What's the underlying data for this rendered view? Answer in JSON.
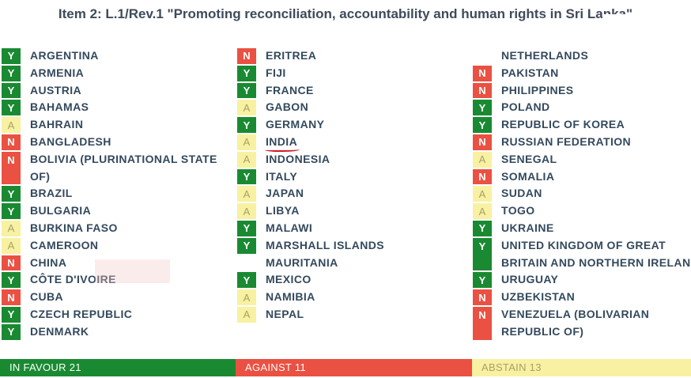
{
  "title": "Item 2: L.1/Rev.1 \"Promoting reconciliation, accountability and human rights in Sri Lanka\"",
  "colors": {
    "favour": "#1a8a32",
    "against": "#ea5142",
    "abstain": "#f8f1a2"
  },
  "columns": [
    [
      {
        "vote": "Y",
        "country": "ARGENTINA"
      },
      {
        "vote": "Y",
        "country": "ARMENIA"
      },
      {
        "vote": "Y",
        "country": "AUSTRIA"
      },
      {
        "vote": "Y",
        "country": "BAHAMAS"
      },
      {
        "vote": "A",
        "country": "BAHRAIN"
      },
      {
        "vote": "N",
        "country": "BANGLADESH"
      },
      {
        "vote": "N",
        "country": "BOLIVIA (PLURINATIONAL STATE OF)",
        "tall": true
      },
      {
        "vote": "Y",
        "country": "BRAZIL"
      },
      {
        "vote": "Y",
        "country": "BULGARIA"
      },
      {
        "vote": "A",
        "country": "BURKINA FASO"
      },
      {
        "vote": "A",
        "country": "CAMEROON"
      },
      {
        "vote": "N",
        "country": "CHINA"
      },
      {
        "vote": "Y",
        "country": "CÔTE D'IVOIRE"
      },
      {
        "vote": "N",
        "country": "CUBA"
      },
      {
        "vote": "Y",
        "country": "CZECH REPUBLIC"
      },
      {
        "vote": "Y",
        "country": "DENMARK"
      }
    ],
    [
      {
        "vote": "N",
        "country": "ERITREA"
      },
      {
        "vote": "Y",
        "country": "FIJI"
      },
      {
        "vote": "Y",
        "country": "FRANCE"
      },
      {
        "vote": "A",
        "country": "GABON"
      },
      {
        "vote": "Y",
        "country": "GERMANY"
      },
      {
        "vote": "A",
        "country": "INDIA",
        "underlined": true
      },
      {
        "vote": "A",
        "country": "INDONESIA"
      },
      {
        "vote": "Y",
        "country": "ITALY"
      },
      {
        "vote": "A",
        "country": "JAPAN"
      },
      {
        "vote": "A",
        "country": "LIBYA"
      },
      {
        "vote": "Y",
        "country": "MALAWI"
      },
      {
        "vote": "Y",
        "country": "MARSHALL ISLANDS"
      },
      {
        "vote": "",
        "country": "MAURITANIA"
      },
      {
        "vote": "Y",
        "country": "MEXICO"
      },
      {
        "vote": "A",
        "country": "NAMIBIA"
      },
      {
        "vote": "A",
        "country": "NEPAL"
      }
    ],
    [
      {
        "vote": "",
        "country": "NETHERLANDS"
      },
      {
        "vote": "N",
        "country": "PAKISTAN"
      },
      {
        "vote": "N",
        "country": "PHILIPPINES"
      },
      {
        "vote": "Y",
        "country": "POLAND"
      },
      {
        "vote": "Y",
        "country": "REPUBLIC OF KOREA"
      },
      {
        "vote": "N",
        "country": "RUSSIAN FEDERATION"
      },
      {
        "vote": "A",
        "country": "SENEGAL"
      },
      {
        "vote": "N",
        "country": "SOMALIA"
      },
      {
        "vote": "A",
        "country": "SUDAN"
      },
      {
        "vote": "A",
        "country": "TOGO"
      },
      {
        "vote": "Y",
        "country": "UKRAINE"
      },
      {
        "vote": "Y",
        "country": "UNITED KINGDOM OF GREAT BRITAIN AND NORTHERN IRELAND",
        "tall": true,
        "wide": true
      },
      {
        "vote": "Y",
        "country": "URUGUAY"
      },
      {
        "vote": "N",
        "country": "UZBEKISTAN"
      },
      {
        "vote": "N",
        "country": "VENEZUELA (BOLIVARIAN REPUBLIC OF)",
        "tall": true
      }
    ]
  ],
  "footer": {
    "favour": "IN FAVOUR 21",
    "against": "AGAINST 11",
    "abstain": "ABSTAIN 13"
  }
}
